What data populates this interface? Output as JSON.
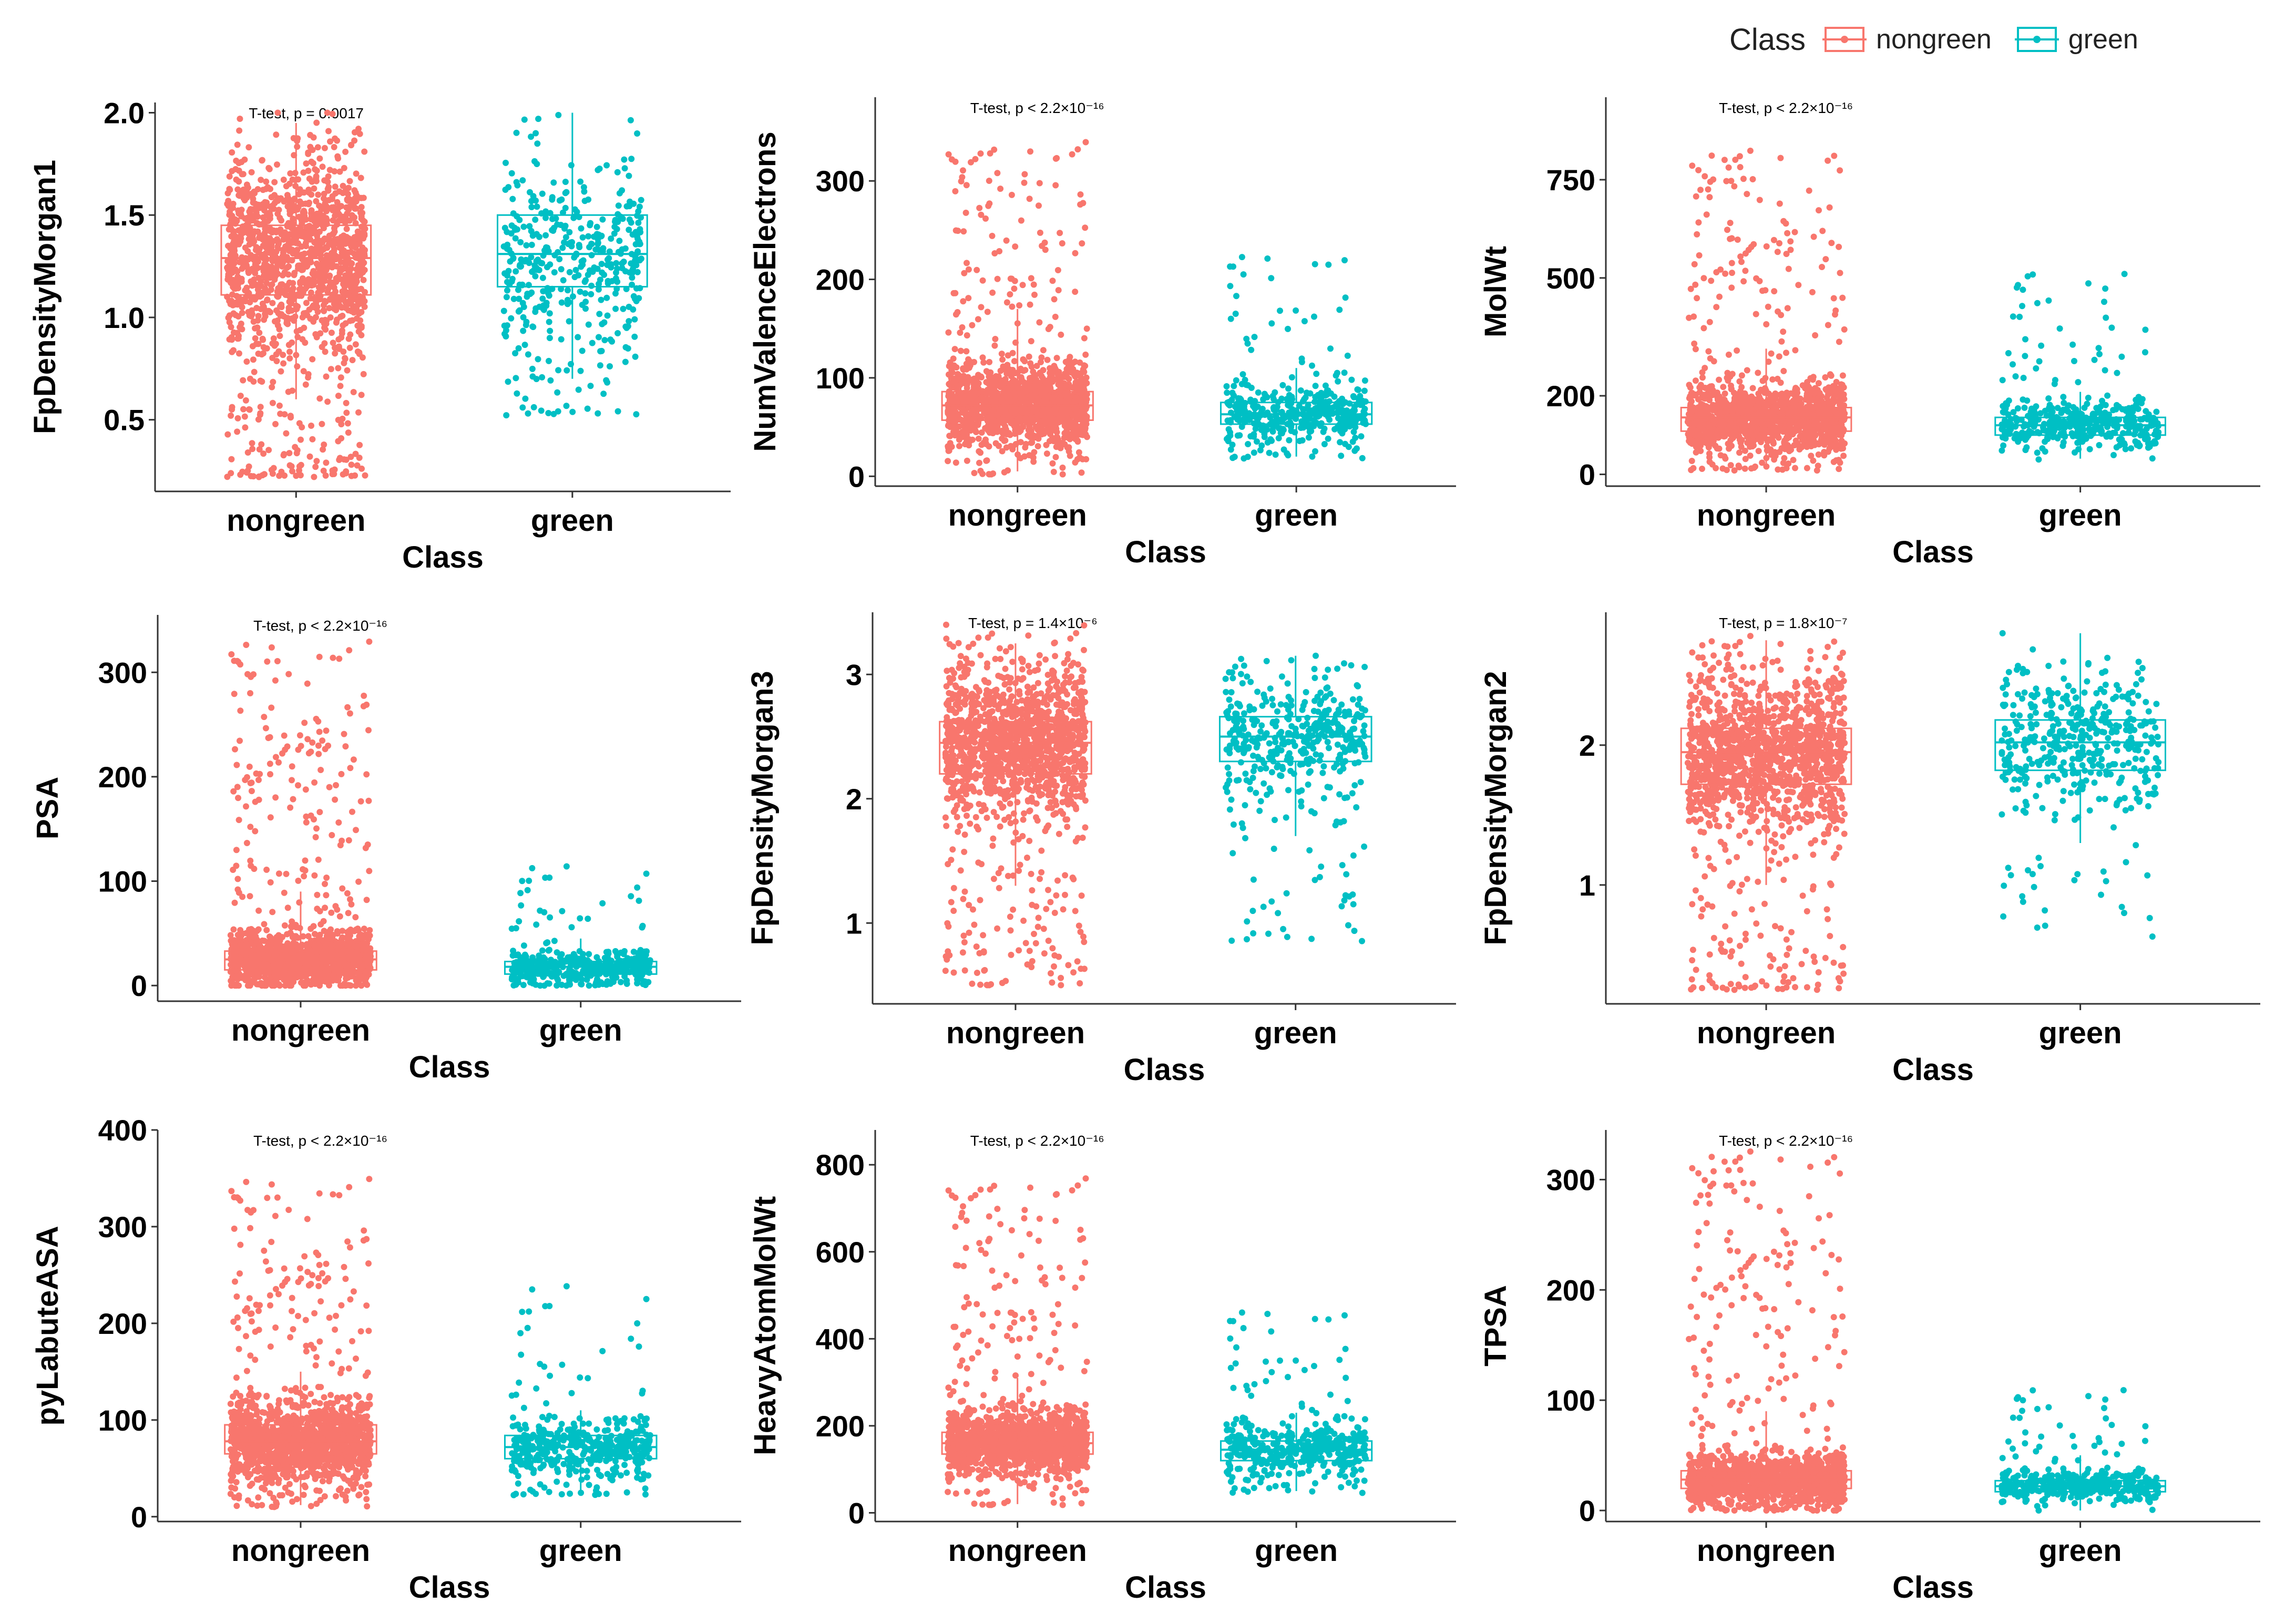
{
  "legend": {
    "title": "Class",
    "items": [
      {
        "label": "nongreen",
        "color": "#F8766D"
      },
      {
        "label": "green",
        "color": "#00BFC4"
      }
    ]
  },
  "chart_data": [
    {
      "type": "boxplot",
      "title": "",
      "ylabel": "FpDensityMorgan1",
      "xlabel": "Class",
      "categories": [
        "nongreen",
        "green"
      ],
      "ylim": [
        0.15,
        2.05
      ],
      "yticks": [
        0.5,
        1.0,
        1.5,
        2.0
      ],
      "ytick_labels": [
        "0.5",
        "1.0",
        "1.5",
        "2.0"
      ],
      "annotation": "T-test, p = 0.0017",
      "boxes": [
        {
          "class": "nongreen",
          "q1": 1.11,
          "median": 1.29,
          "q3": 1.45,
          "whisker_low": 0.6,
          "whisker_high": 1.95,
          "jitter_min": 0.22,
          "jitter_max": 2.0,
          "n_points": 1400
        },
        {
          "class": "green",
          "q1": 1.15,
          "median": 1.31,
          "q3": 1.5,
          "whisker_low": 0.7,
          "whisker_high": 2.0,
          "jitter_min": 0.52,
          "jitter_max": 2.0,
          "n_points": 420
        }
      ]
    },
    {
      "type": "boxplot",
      "title": "",
      "ylabel": "NumValenceElectrons",
      "xlabel": "Class",
      "categories": [
        "nongreen",
        "green"
      ],
      "ylim": [
        -10,
        385
      ],
      "yticks": [
        0,
        100,
        200,
        300
      ],
      "ytick_labels": [
        "0",
        "100",
        "200",
        "300"
      ],
      "annotation": "T-test, p < 2.2×10⁻¹⁶",
      "boxes": [
        {
          "class": "nongreen",
          "q1": 57,
          "median": 72,
          "q3": 86,
          "whisker_low": 5,
          "whisker_high": 170,
          "jitter_min": 2,
          "jitter_max": 340,
          "n_points": 1400
        },
        {
          "class": "green",
          "q1": 53,
          "median": 63,
          "q3": 75,
          "whisker_low": 20,
          "whisker_high": 110,
          "jitter_min": 18,
          "jitter_max": 225,
          "n_points": 420
        }
      ]
    },
    {
      "type": "boxplot",
      "title": "",
      "ylabel": "MolWt",
      "xlabel": "Class",
      "categories": [
        "nongreen",
        "green"
      ],
      "ylim": [
        -30,
        960
      ],
      "yticks": [
        0,
        200,
        500,
        750
      ],
      "ytick_labels": [
        "0",
        "200",
        "500",
        "750"
      ],
      "annotation": "T-test, p < 2.2×10⁻¹⁶",
      "boxes": [
        {
          "class": "nongreen",
          "q1": 110,
          "median": 145,
          "q3": 170,
          "whisker_low": 15,
          "whisker_high": 320,
          "jitter_min": 10,
          "jitter_max": 830,
          "n_points": 1400
        },
        {
          "class": "green",
          "q1": 100,
          "median": 125,
          "q3": 145,
          "whisker_low": 40,
          "whisker_high": 210,
          "jitter_min": 38,
          "jitter_max": 535,
          "n_points": 420
        }
      ]
    },
    {
      "type": "boxplot",
      "title": "",
      "ylabel": "PSA",
      "xlabel": "Class",
      "categories": [
        "nongreen",
        "green"
      ],
      "ylim": [
        -15,
        355
      ],
      "yticks": [
        0,
        100,
        200,
        300
      ],
      "ytick_labels": [
        "0",
        "100",
        "200",
        "300"
      ],
      "annotation": "T-test, p < 2.2×10⁻¹⁶",
      "boxes": [
        {
          "class": "nongreen",
          "q1": 15,
          "median": 25,
          "q3": 33,
          "whisker_low": 0,
          "whisker_high": 90,
          "jitter_min": 0,
          "jitter_max": 330,
          "n_points": 1400
        },
        {
          "class": "green",
          "q1": 11,
          "median": 18,
          "q3": 23,
          "whisker_low": 0,
          "whisker_high": 45,
          "jitter_min": 0,
          "jitter_max": 115,
          "n_points": 420
        }
      ]
    },
    {
      "type": "boxplot",
      "title": "",
      "ylabel": "FpDensityMorgan3",
      "xlabel": "Class",
      "categories": [
        "nongreen",
        "green"
      ],
      "ylim": [
        0.35,
        3.5
      ],
      "yticks": [
        1,
        2,
        3
      ],
      "ytick_labels": [
        "1",
        "2",
        "3"
      ],
      "annotation": "T-test, p = 1.4×10⁻⁶",
      "boxes": [
        {
          "class": "nongreen",
          "q1": 2.2,
          "median": 2.45,
          "q3": 2.62,
          "whisker_low": 1.3,
          "whisker_high": 3.25,
          "jitter_min": 0.5,
          "jitter_max": 3.4,
          "n_points": 1400
        },
        {
          "class": "green",
          "q1": 2.3,
          "median": 2.5,
          "q3": 2.66,
          "whisker_low": 1.7,
          "whisker_high": 3.15,
          "jitter_min": 0.85,
          "jitter_max": 3.15,
          "n_points": 420
        }
      ]
    },
    {
      "type": "boxplot",
      "title": "",
      "ylabel": "FpDensityMorgan2",
      "xlabel": "Class",
      "categories": [
        "nongreen",
        "green"
      ],
      "ylim": [
        0.15,
        2.95
      ],
      "yticks": [
        1,
        2
      ],
      "ytick_labels": [
        "1",
        "2"
      ],
      "annotation": "T-test, p = 1.8×10⁻⁷",
      "boxes": [
        {
          "class": "nongreen",
          "q1": 1.72,
          "median": 1.95,
          "q3": 2.12,
          "whisker_low": 1.0,
          "whisker_high": 2.75,
          "jitter_min": 0.25,
          "jitter_max": 2.8,
          "n_points": 1400
        },
        {
          "class": "green",
          "q1": 1.82,
          "median": 2.02,
          "q3": 2.18,
          "whisker_low": 1.3,
          "whisker_high": 2.8,
          "jitter_min": 0.62,
          "jitter_max": 2.8,
          "n_points": 420
        }
      ]
    },
    {
      "type": "boxplot",
      "title": "",
      "ylabel": "pyLabuteASA",
      "xlabel": "Class",
      "categories": [
        "nongreen",
        "green"
      ],
      "ylim": [
        -5,
        400
      ],
      "yticks": [
        0,
        100,
        200,
        300,
        400
      ],
      "ytick_labels": [
        "0",
        "100",
        "200",
        "300",
        "400"
      ],
      "annotation": "T-test, p < 2.2×10⁻¹⁶",
      "boxes": [
        {
          "class": "nongreen",
          "q1": 65,
          "median": 78,
          "q3": 95,
          "whisker_low": 12,
          "whisker_high": 150,
          "jitter_min": 10,
          "jitter_max": 350,
          "n_points": 1400
        },
        {
          "class": "green",
          "q1": 60,
          "median": 72,
          "q3": 84,
          "whisker_low": 25,
          "whisker_high": 110,
          "jitter_min": 22,
          "jitter_max": 240,
          "n_points": 420
        }
      ]
    },
    {
      "type": "boxplot",
      "title": "",
      "ylabel": "HeavyAtomMolWt",
      "xlabel": "Class",
      "categories": [
        "nongreen",
        "green"
      ],
      "ylim": [
        -20,
        880
      ],
      "yticks": [
        0,
        200,
        400,
        600,
        800
      ],
      "ytick_labels": [
        "0",
        "200",
        "400",
        "600",
        "800"
      ],
      "annotation": "T-test, p < 2.2×10⁻¹⁶",
      "boxes": [
        {
          "class": "nongreen",
          "q1": 135,
          "median": 160,
          "q3": 185,
          "whisker_low": 20,
          "whisker_high": 310,
          "jitter_min": 18,
          "jitter_max": 770,
          "n_points": 1400
        },
        {
          "class": "green",
          "q1": 120,
          "median": 145,
          "q3": 165,
          "whisker_low": 50,
          "whisker_high": 230,
          "jitter_min": 45,
          "jitter_max": 465,
          "n_points": 420
        }
      ]
    },
    {
      "type": "boxplot",
      "title": "",
      "ylabel": "TPSA",
      "xlabel": "Class",
      "categories": [
        "nongreen",
        "green"
      ],
      "ylim": [
        -10,
        345
      ],
      "yticks": [
        0,
        100,
        200,
        300
      ],
      "ytick_labels": [
        "0",
        "100",
        "200",
        "300"
      ],
      "annotation": "T-test, p < 2.2×10⁻¹⁶",
      "boxes": [
        {
          "class": "nongreen",
          "q1": 20,
          "median": 28,
          "q3": 36,
          "whisker_low": 0,
          "whisker_high": 90,
          "jitter_min": 0,
          "jitter_max": 328,
          "n_points": 1400
        },
        {
          "class": "green",
          "q1": 17,
          "median": 22,
          "q3": 27,
          "whisker_low": 0,
          "whisker_high": 50,
          "jitter_min": 0,
          "jitter_max": 115,
          "n_points": 420
        }
      ]
    }
  ]
}
